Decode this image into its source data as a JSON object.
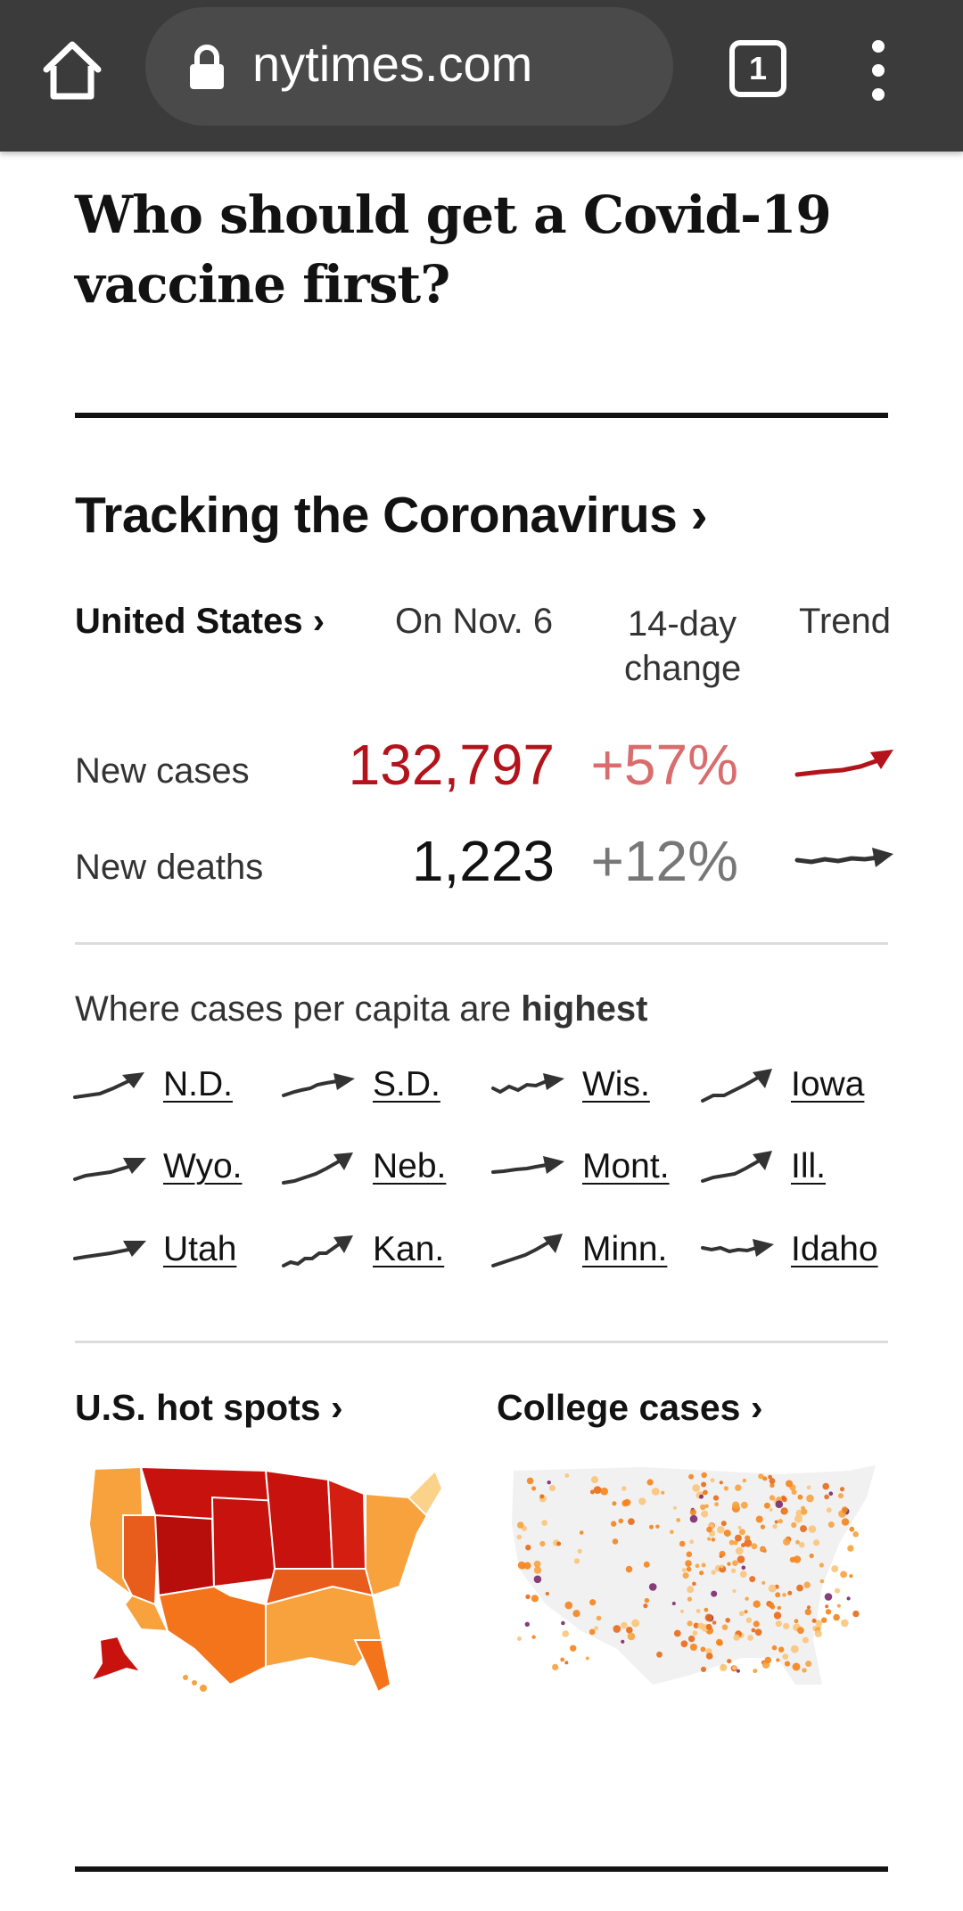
{
  "browser": {
    "url": "nytimes.com",
    "tab_count": "1",
    "colors": {
      "toolbar": "#3b3b3b",
      "urlbar": "#4a4a4a"
    }
  },
  "article": {
    "headline": "Who should get a Covid-19 vaccine first?"
  },
  "tracker": {
    "title": "Tracking the Coronavirus ›",
    "region_link": "United States ›",
    "col_date": "On Nov. 6",
    "col_change_line1": "14-day",
    "col_change_line2": "change",
    "col_trend": "Trend",
    "rows": [
      {
        "label": "New cases",
        "value": "132,797",
        "change": "+57%",
        "trend": "up",
        "color": "#b3131b"
      },
      {
        "label": "New deaths",
        "value": "1,223",
        "change": "+12%",
        "trend": "up",
        "color": "#333333"
      }
    ],
    "highest_prefix": "Where cases per capita are ",
    "highest_emphasis": "highest",
    "states": [
      "N.D.",
      "S.D.",
      "Wis.",
      "Iowa",
      "Wyo.",
      "Neb.",
      "Mont.",
      "Ill.",
      "Utah",
      "Kan.",
      "Minn.",
      "Idaho"
    ]
  },
  "maps": {
    "hotspots_link": "U.S. hot spots ›",
    "college_link": "College cases ›"
  }
}
